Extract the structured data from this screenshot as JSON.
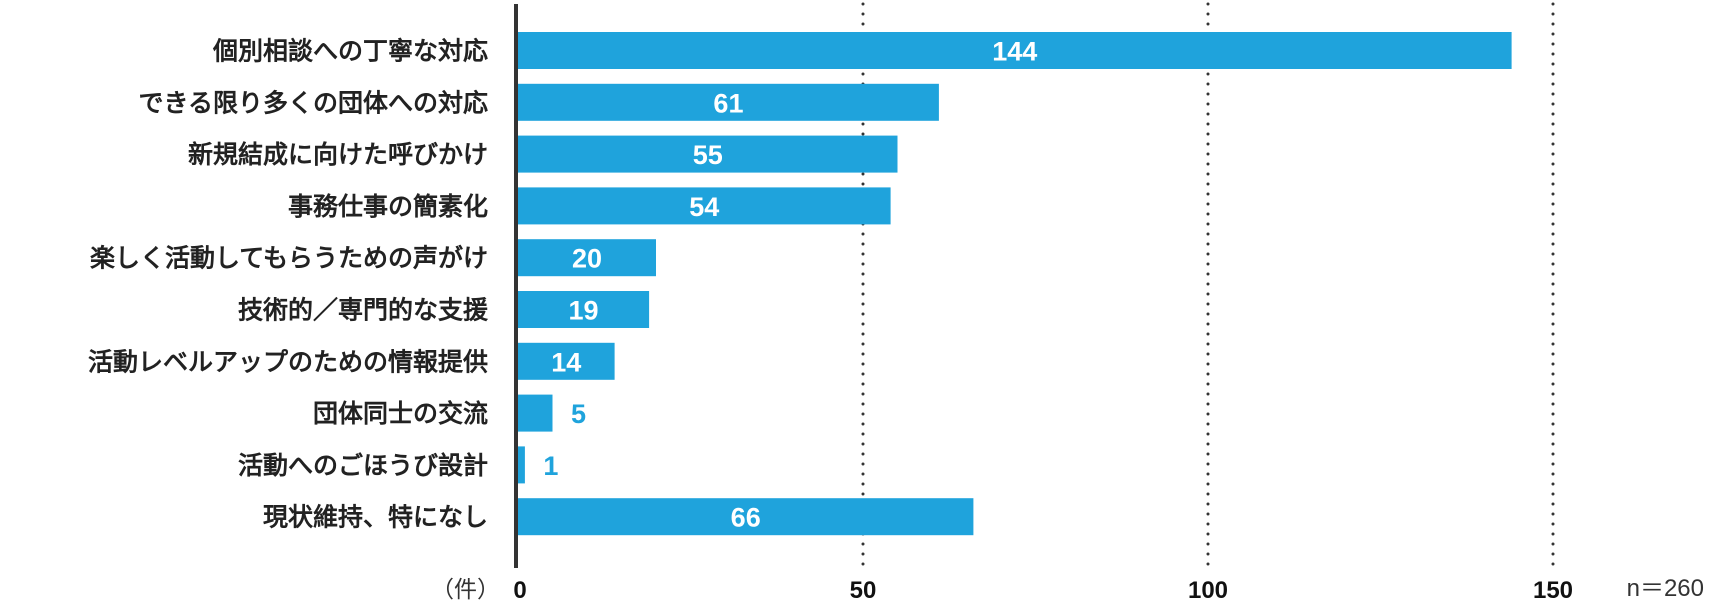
{
  "chart_data": {
    "type": "bar",
    "orientation": "horizontal",
    "categories": [
      "個別相談への丁寧な対応",
      "できる限り多くの団体への対応",
      "新規結成に向けた呼びかけ",
      "事務仕事の簡素化",
      "楽しく活動してもらうための声がけ",
      "技術的／専門的な支援",
      "活動レベルアップのための情報提供",
      "団体同士の交流",
      "活動へのごほうび設計",
      "現状維持、特になし"
    ],
    "values": [
      144,
      61,
      55,
      54,
      20,
      19,
      14,
      5,
      1,
      66
    ],
    "xlim": [
      0,
      150
    ],
    "xticks": [
      0,
      50,
      100,
      150
    ],
    "tick_labels": [
      "0",
      "50",
      "100",
      "150"
    ],
    "grid": "vertical dotted lines at ticks",
    "unit_label": "（件）",
    "sample_note": "n＝260",
    "bar_color": "#1fa3dc",
    "label_inside_color": "#ffffff",
    "label_outside_color": "#1fa3dc"
  }
}
